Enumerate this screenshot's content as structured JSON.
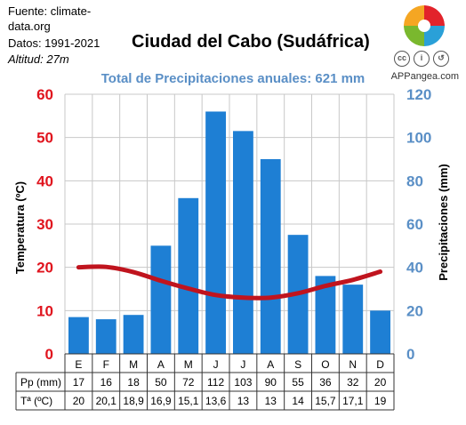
{
  "source": {
    "line1": "Fuente: climate-",
    "line2": "data.org",
    "line3": "Datos: 1991-2021",
    "line4": "Altitud: 27m"
  },
  "brand": "APPangea.com",
  "chart_data": {
    "type": "bar",
    "title": "Ciudad del Cabo (Sudáfrica)",
    "subtitle": "Total de Precipitaciones anuales: 621 mm",
    "categories": [
      "E",
      "F",
      "M",
      "A",
      "M",
      "J",
      "J",
      "A",
      "S",
      "O",
      "N",
      "D"
    ],
    "series": [
      {
        "name": "Pp (mm)",
        "type": "bar",
        "axis": "right",
        "values": [
          17,
          16,
          18,
          50,
          72,
          112,
          103,
          90,
          55,
          36,
          32,
          20
        ],
        "color": "#1e7fd4"
      },
      {
        "name": "Tª (ºC)",
        "type": "line",
        "axis": "left",
        "values": [
          20,
          20.1,
          18.9,
          16.9,
          15.1,
          13.6,
          13,
          13,
          14,
          15.7,
          17.1,
          19
        ],
        "color": "#c0141e"
      }
    ],
    "table_rows": [
      {
        "label": "Pp (mm)",
        "values": [
          "17",
          "16",
          "18",
          "50",
          "72",
          "112",
          "103",
          "90",
          "55",
          "36",
          "32",
          "20"
        ]
      },
      {
        "label": "Tª (ºC)",
        "values": [
          "20",
          "20,1",
          "18,9",
          "16,9",
          "15,1",
          "13,6",
          "13",
          "13",
          "14",
          "15,7",
          "17,1",
          "19"
        ]
      }
    ],
    "ylabel_left": "Temperatura (ºC)",
    "ylabel_right": "Precipitaciones (mm)",
    "ylim_left": [
      0,
      60
    ],
    "ylim_right": [
      0,
      120
    ],
    "yticks_left": [
      0,
      10,
      20,
      30,
      40,
      50,
      60
    ],
    "yticks_right": [
      0,
      20,
      40,
      60,
      80,
      100,
      120
    ],
    "left_axis_color": "#e0141e",
    "right_axis_color": "#5a8fc6",
    "grid": true
  }
}
